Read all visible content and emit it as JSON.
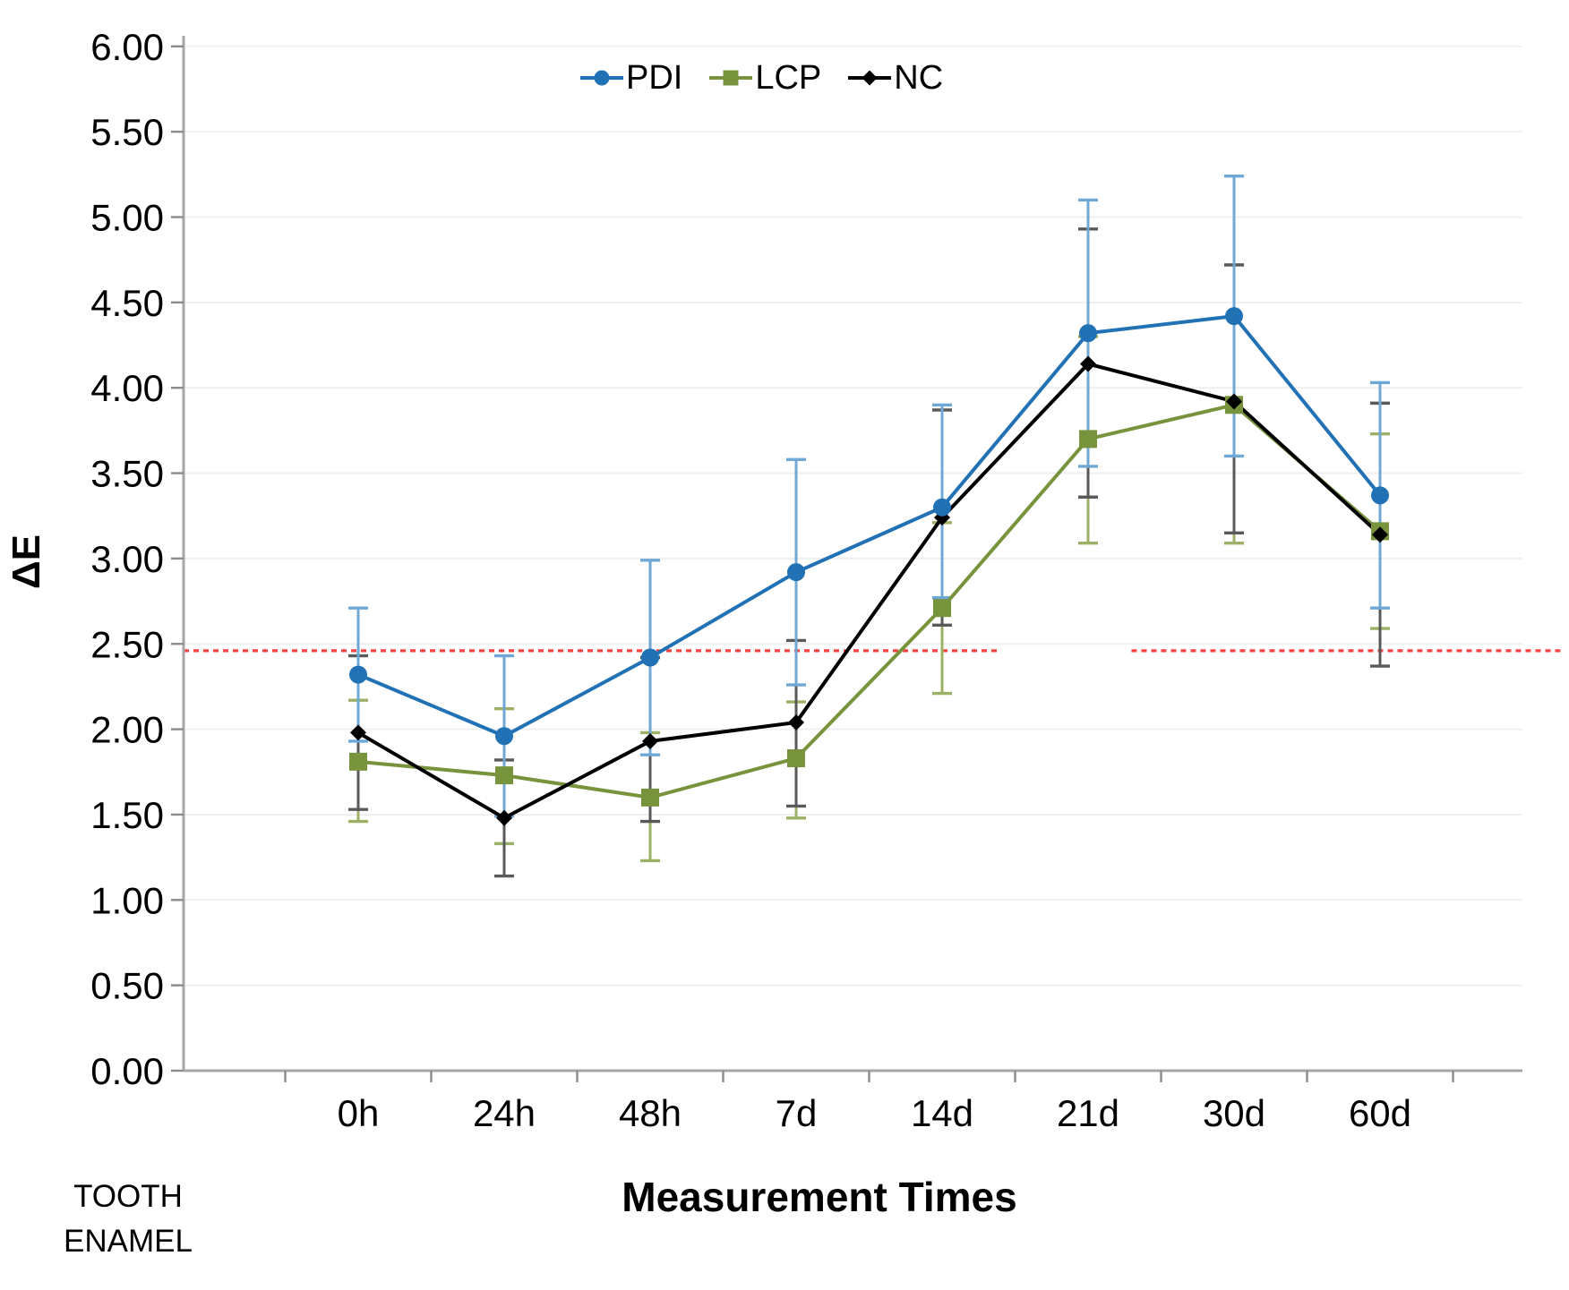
{
  "chart_data": {
    "type": "line",
    "title": "",
    "xlabel": "Measurement Times",
    "ylabel": "ΔE",
    "corner_note": [
      "TOOTH",
      "ENAMEL"
    ],
    "categories": [
      "0h",
      "24h",
      "48h",
      "7d",
      "14d",
      "21d",
      "30d",
      "60d"
    ],
    "ylim": [
      0,
      6
    ],
    "ytick_step": 0.5,
    "ytick_decimals": 2,
    "grid": "horizontal",
    "legend_position": "top-center",
    "colors": {
      "axis": "#A6A6A6",
      "grid": "#EFEFEF",
      "tick": "#8C8C8C",
      "text": "#000000"
    },
    "threshold": {
      "value": 2.46,
      "color": "#FF3333",
      "style": "dashed",
      "segments_frac": [
        [
          0.0,
          0.609
        ],
        [
          0.708,
          1.031
        ]
      ]
    },
    "series": [
      {
        "name": "LCP",
        "marker": "square",
        "color": "#77933C",
        "err_color": "#9CB165",
        "values": [
          1.81,
          1.73,
          1.6,
          1.83,
          2.71,
          3.7,
          3.9,
          3.16
        ],
        "err_upper": [
          2.17,
          2.12,
          1.98,
          2.16,
          3.21,
          4.3,
          4.72,
          3.73
        ],
        "err_lower": [
          1.46,
          1.33,
          1.23,
          1.48,
          2.21,
          3.09,
          3.09,
          2.59
        ]
      },
      {
        "name": "NC",
        "marker": "diamond",
        "color": "#000000",
        "err_color": "#595959",
        "values": [
          1.98,
          1.48,
          1.93,
          2.04,
          3.24,
          4.14,
          3.92,
          3.14
        ],
        "err_upper": [
          2.43,
          1.82,
          2.42,
          2.52,
          3.87,
          4.93,
          4.72,
          3.91
        ],
        "err_lower": [
          1.53,
          1.14,
          1.46,
          1.55,
          2.61,
          3.36,
          3.15,
          2.37
        ]
      },
      {
        "name": "PDI",
        "marker": "circle",
        "color": "#2171B5",
        "err_color": "#6FA8D6",
        "values": [
          2.32,
          1.96,
          2.42,
          2.92,
          3.3,
          4.32,
          4.42,
          3.37
        ],
        "err_upper": [
          2.71,
          2.43,
          2.99,
          3.58,
          3.9,
          5.1,
          5.24,
          4.03
        ],
        "err_lower": [
          1.93,
          1.49,
          1.85,
          2.26,
          2.77,
          3.54,
          3.6,
          2.71
        ]
      }
    ],
    "legend_order": [
      "PDI",
      "LCP",
      "NC"
    ]
  }
}
